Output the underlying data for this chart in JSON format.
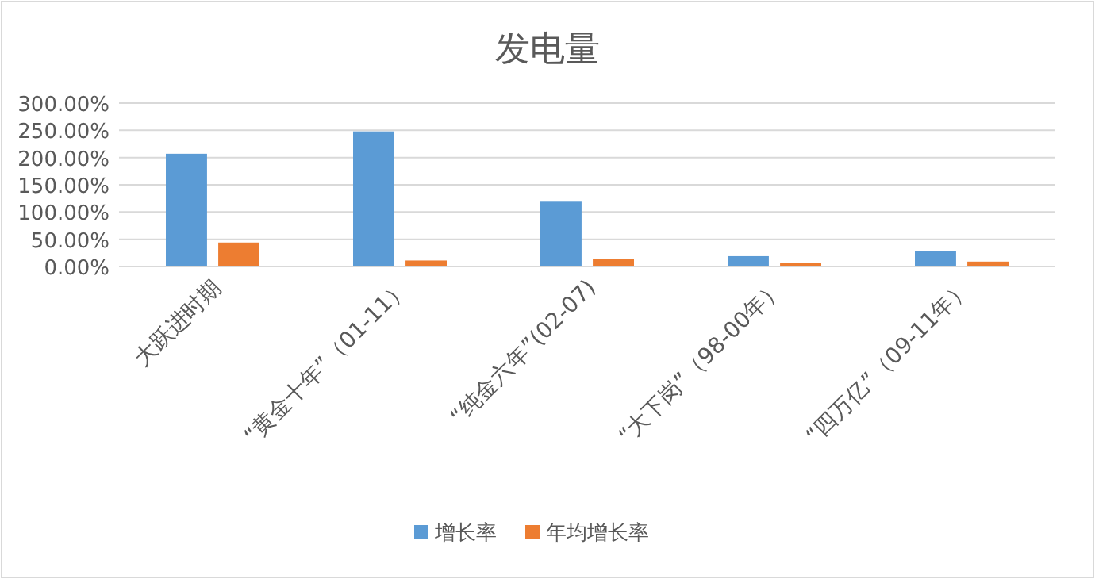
{
  "chart_data": {
    "type": "bar",
    "title": "发电量",
    "categories": [
      "大跃进时期",
      "“黄金十年”（01-11）",
      "“纯金六年”(02-07)",
      "“大下岗”（98-00年）",
      "“四万亿”（09-11年）"
    ],
    "series": [
      {
        "name": "增长率",
        "color": "#5b9bd5",
        "values": [
          207,
          248,
          119,
          19,
          29
        ]
      },
      {
        "name": "年均增长率",
        "color": "#ed7d31",
        "values": [
          44,
          11,
          14,
          6,
          9
        ]
      }
    ],
    "ylim": [
      0,
      300
    ],
    "yticks": [
      {
        "value": 0,
        "label": "0.00%"
      },
      {
        "value": 50,
        "label": "50.00%"
      },
      {
        "value": 100,
        "label": "100.00%"
      },
      {
        "value": 150,
        "label": "150.00%"
      },
      {
        "value": 200,
        "label": "200.00%"
      },
      {
        "value": 250,
        "label": "250.00%"
      },
      {
        "value": 300,
        "label": "300.00%"
      }
    ],
    "grid": "y",
    "legend": "bottom"
  }
}
